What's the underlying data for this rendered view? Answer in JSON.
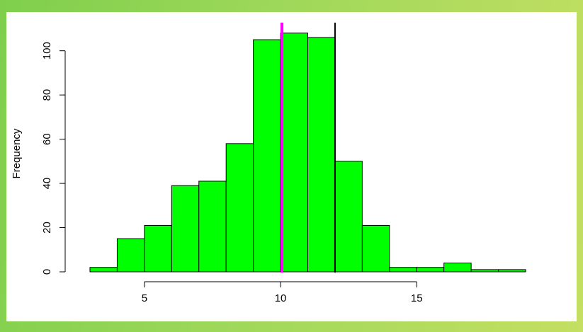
{
  "chart_data": {
    "type": "bar",
    "subtype": "histogram",
    "title": "",
    "xlabel": "",
    "ylabel": "Frequency",
    "bins": [
      {
        "start": 3,
        "end": 4,
        "count": 2
      },
      {
        "start": 4,
        "end": 5,
        "count": 15
      },
      {
        "start": 5,
        "end": 6,
        "count": 21
      },
      {
        "start": 6,
        "end": 7,
        "count": 39
      },
      {
        "start": 7,
        "end": 8,
        "count": 41
      },
      {
        "start": 8,
        "end": 9,
        "count": 58
      },
      {
        "start": 9,
        "end": 10,
        "count": 105
      },
      {
        "start": 10,
        "end": 11,
        "count": 108
      },
      {
        "start": 11,
        "end": 12,
        "count": 106
      },
      {
        "start": 12,
        "end": 13,
        "count": 50
      },
      {
        "start": 13,
        "end": 14,
        "count": 21
      },
      {
        "start": 14,
        "end": 15,
        "count": 2
      },
      {
        "start": 15,
        "end": 16,
        "count": 2
      },
      {
        "start": 16,
        "end": 17,
        "count": 4
      },
      {
        "start": 17,
        "end": 18,
        "count": 1
      },
      {
        "start": 18,
        "end": 19,
        "count": 1
      }
    ],
    "xaxis": {
      "ticks": [
        5,
        10,
        15
      ],
      "tick_labels": [
        "5",
        "10",
        "15"
      ],
      "range": [
        3,
        19
      ]
    },
    "yaxis": {
      "ticks": [
        0,
        20,
        40,
        60,
        80,
        100
      ],
      "tick_labels": [
        "0",
        "20",
        "40",
        "60",
        "80",
        "100"
      ],
      "range": [
        0,
        108
      ]
    },
    "bar_color": "#00ff00",
    "bar_edge_color": "#000000",
    "vertical_lines": [
      {
        "x": 10.05,
        "color": "#ff00ff"
      },
      {
        "x": 12.0,
        "color": "#000000"
      }
    ],
    "grid": false,
    "legend": "none"
  }
}
